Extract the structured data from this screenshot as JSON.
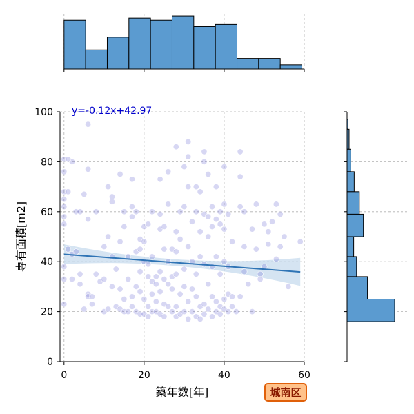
{
  "chart_data": {
    "type": "scatter",
    "title": "",
    "xlabel": "築年数[年]",
    "ylabel": "専有面積[m2]",
    "xlim": [
      -1,
      60
    ],
    "ylim": [
      0,
      100
    ],
    "x_ticks": [
      0,
      20,
      40,
      60
    ],
    "y_ticks": [
      0,
      20,
      40,
      60,
      80,
      100
    ],
    "grid": true,
    "annotation": "y=-0.12x+42.97",
    "badge": "城南区",
    "regression": {
      "slope": -0.12,
      "intercept": 42.97
    },
    "points": [
      [
        0,
        81
      ],
      [
        0,
        65
      ],
      [
        0,
        58
      ],
      [
        0,
        55
      ],
      [
        0,
        38
      ],
      [
        0,
        23
      ],
      [
        0,
        33
      ],
      [
        0,
        76
      ],
      [
        0,
        62
      ],
      [
        0,
        68
      ],
      [
        1,
        68
      ],
      [
        1,
        45
      ],
      [
        2,
        43
      ],
      [
        2,
        80
      ],
      [
        2,
        33
      ],
      [
        3,
        60
      ],
      [
        3,
        44
      ],
      [
        4,
        60
      ],
      [
        4,
        35
      ],
      [
        4,
        31
      ],
      [
        5,
        21
      ],
      [
        6,
        95
      ],
      [
        6,
        77
      ],
      [
        6,
        57
      ],
      [
        6,
        27
      ],
      [
        6,
        26
      ],
      [
        7,
        26
      ],
      [
        7,
        23
      ],
      [
        8,
        35
      ],
      [
        8,
        60
      ],
      [
        9,
        32
      ],
      [
        10,
        20
      ],
      [
        10,
        33
      ],
      [
        10,
        46
      ],
      [
        11,
        70
      ],
      [
        11,
        50
      ],
      [
        11,
        21
      ],
      [
        12,
        66
      ],
      [
        12,
        64
      ],
      [
        12,
        42
      ],
      [
        13,
        37
      ],
      [
        13,
        22
      ],
      [
        14,
        75
      ],
      [
        14,
        48
      ],
      [
        14,
        29
      ],
      [
        14,
        21
      ],
      [
        15,
        60
      ],
      [
        15,
        54
      ],
      [
        15,
        25
      ],
      [
        15,
        20
      ],
      [
        16,
        42
      ],
      [
        16,
        20
      ],
      [
        16,
        33
      ],
      [
        17,
        62
      ],
      [
        17,
        58
      ],
      [
        17,
        73
      ],
      [
        17,
        26
      ],
      [
        17,
        22
      ],
      [
        18,
        60
      ],
      [
        18,
        44
      ],
      [
        18,
        30
      ],
      [
        18,
        20
      ],
      [
        19,
        36
      ],
      [
        19,
        45
      ],
      [
        19,
        49
      ],
      [
        19,
        28
      ],
      [
        19,
        19
      ],
      [
        20,
        54
      ],
      [
        20,
        48
      ],
      [
        20,
        40
      ],
      [
        20,
        25
      ],
      [
        20,
        19
      ],
      [
        21,
        55
      ],
      [
        21,
        39
      ],
      [
        21,
        34
      ],
      [
        21,
        22
      ],
      [
        21,
        18
      ],
      [
        22,
        60
      ],
      [
        22,
        42
      ],
      [
        22,
        32
      ],
      [
        22,
        27
      ],
      [
        22,
        20
      ],
      [
        23,
        34
      ],
      [
        23,
        31
      ],
      [
        23,
        24
      ],
      [
        23,
        20
      ],
      [
        24,
        73
      ],
      [
        24,
        59
      ],
      [
        24,
        53
      ],
      [
        24,
        36
      ],
      [
        24,
        28
      ],
      [
        24,
        19
      ],
      [
        25,
        54
      ],
      [
        25,
        45
      ],
      [
        25,
        33
      ],
      [
        25,
        23
      ],
      [
        25,
        18
      ],
      [
        26,
        76
      ],
      [
        26,
        63
      ],
      [
        26,
        40
      ],
      [
        26,
        31
      ],
      [
        26,
        22
      ],
      [
        27,
        45
      ],
      [
        27,
        34
      ],
      [
        27,
        29
      ],
      [
        27,
        20
      ],
      [
        28,
        86
      ],
      [
        28,
        52
      ],
      [
        28,
        44
      ],
      [
        28,
        35
      ],
      [
        28,
        22
      ],
      [
        28,
        18
      ],
      [
        29,
        60
      ],
      [
        29,
        49
      ],
      [
        29,
        27
      ],
      [
        29,
        19
      ],
      [
        30,
        78
      ],
      [
        30,
        62
      ],
      [
        30,
        37
      ],
      [
        30,
        30
      ],
      [
        30,
        20
      ],
      [
        31,
        88
      ],
      [
        31,
        82
      ],
      [
        31,
        70
      ],
      [
        31,
        46
      ],
      [
        31,
        24
      ],
      [
        31,
        17
      ],
      [
        32,
        56
      ],
      [
        32,
        40
      ],
      [
        32,
        29
      ],
      [
        32,
        20
      ],
      [
        33,
        70
      ],
      [
        33,
        60
      ],
      [
        33,
        35
      ],
      [
        33,
        26
      ],
      [
        33,
        18
      ],
      [
        34,
        68
      ],
      [
        34,
        52
      ],
      [
        34,
        42
      ],
      [
        34,
        22
      ],
      [
        34,
        17
      ],
      [
        35,
        84
      ],
      [
        35,
        80
      ],
      [
        35,
        59
      ],
      [
        35,
        39
      ],
      [
        35,
        23
      ],
      [
        35,
        19
      ],
      [
        36,
        75
      ],
      [
        36,
        58
      ],
      [
        36,
        50
      ],
      [
        36,
        31
      ],
      [
        36,
        21
      ],
      [
        37,
        62
      ],
      [
        37,
        54
      ],
      [
        37,
        38
      ],
      [
        37,
        26
      ],
      [
        37,
        18
      ],
      [
        38,
        70
      ],
      [
        38,
        57
      ],
      [
        38,
        42
      ],
      [
        38,
        24
      ],
      [
        38,
        20
      ],
      [
        39,
        60
      ],
      [
        39,
        55
      ],
      [
        39,
        35
      ],
      [
        39,
        22
      ],
      [
        39,
        19
      ],
      [
        40,
        78
      ],
      [
        40,
        63
      ],
      [
        40,
        53
      ],
      [
        40,
        40
      ],
      [
        40,
        25
      ],
      [
        40,
        21
      ],
      [
        41,
        59
      ],
      [
        41,
        38
      ],
      [
        41,
        27
      ],
      [
        41,
        20
      ],
      [
        42,
        48
      ],
      [
        42,
        26
      ],
      [
        42,
        22
      ],
      [
        43,
        20
      ],
      [
        44,
        84
      ],
      [
        44,
        74
      ],
      [
        44,
        62
      ],
      [
        45,
        60
      ],
      [
        45,
        46
      ],
      [
        45,
        36
      ],
      [
        46,
        31
      ],
      [
        47,
        53
      ],
      [
        47,
        20
      ],
      [
        48,
        63
      ],
      [
        48,
        45
      ],
      [
        49,
        35
      ],
      [
        49,
        33
      ],
      [
        50,
        55
      ],
      [
        50,
        38
      ],
      [
        51,
        52
      ],
      [
        51,
        47
      ],
      [
        52,
        56
      ],
      [
        53,
        63
      ],
      [
        53,
        41
      ],
      [
        54,
        59
      ],
      [
        54,
        46
      ],
      [
        55,
        50
      ],
      [
        56,
        30
      ],
      [
        59,
        48
      ],
      [
        44,
        26
      ],
      [
        12,
        30
      ],
      [
        5,
        67
      ],
      [
        1,
        81
      ]
    ],
    "x_hist": {
      "bins": [
        0,
        5.4,
        10.8,
        16.2,
        21.6,
        27,
        32.4,
        37.8,
        43.2,
        48.6,
        54,
        59.4
      ],
      "counts": [
        23,
        9,
        15,
        24,
        23,
        25,
        20,
        21,
        5,
        5,
        2
      ]
    },
    "y_hist": {
      "bins": [
        16.5,
        25,
        33.5,
        42,
        50.5,
        59,
        67.5,
        76,
        84.5,
        93,
        101.5
      ],
      "counts": [
        30,
        13,
        6,
        4,
        10,
        7,
        4,
        2,
        1,
        0
      ],
      "bar_bins": [
        [
          93,
          97,
          0.6
        ],
        [
          85,
          93,
          1.2
        ],
        [
          76,
          85,
          2.2
        ],
        [
          68,
          76,
          4.2
        ],
        [
          59,
          68,
          7.2
        ],
        [
          50,
          59,
          9.6
        ],
        [
          42,
          50,
          3.9
        ],
        [
          34,
          42,
          5.6
        ],
        [
          25,
          34,
          12.0
        ],
        [
          16,
          25,
          28.0
        ]
      ]
    }
  }
}
